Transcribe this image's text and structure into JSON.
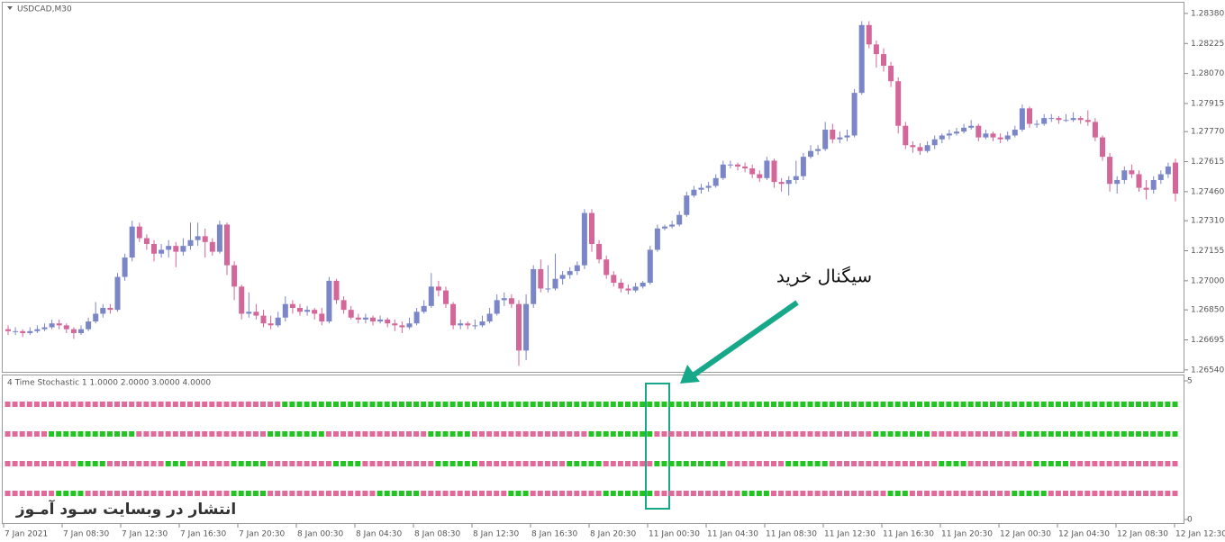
{
  "chart_data": [
    {
      "type": "candlestick",
      "title": "USDCAD,M30",
      "bull_color": "#7b86c8",
      "bear_color": "#d4679a",
      "ylim": [
        1.2653,
        1.2844
      ],
      "yticks": [
        {
          "value": 1.2838,
          "label": "1.28380"
        },
        {
          "value": 1.28225,
          "label": "1.28225"
        },
        {
          "value": 1.2807,
          "label": "1.28070"
        },
        {
          "value": 1.27915,
          "label": "1.27915"
        },
        {
          "value": 1.2777,
          "label": "1.27770"
        },
        {
          "value": 1.27615,
          "label": "1.27615"
        },
        {
          "value": 1.2746,
          "label": "1.27460"
        },
        {
          "value": 1.2731,
          "label": "1.27310"
        },
        {
          "value": 1.27155,
          "label": "1.27155"
        },
        {
          "value": 1.27,
          "label": "1.27000"
        },
        {
          "value": 1.2685,
          "label": "1.26850"
        },
        {
          "value": 1.26695,
          "label": "1.26695"
        },
        {
          "value": 1.2654,
          "label": "1.26540"
        }
      ],
      "annotation": "سیگنال خرید",
      "candles": [
        [
          1.2675,
          1.2677,
          1.2672,
          1.2674
        ],
        [
          1.2674,
          1.2676,
          1.2672,
          1.2674
        ],
        [
          1.2674,
          1.2675,
          1.2671,
          1.2673
        ],
        [
          1.2673,
          1.2676,
          1.2672,
          1.2674
        ],
        [
          1.2674,
          1.2677,
          1.2673,
          1.2675
        ],
        [
          1.2675,
          1.2678,
          1.2674,
          1.2676
        ],
        [
          1.2676,
          1.268,
          1.2675,
          1.2678
        ],
        [
          1.2678,
          1.268,
          1.2675,
          1.2677
        ],
        [
          1.2677,
          1.2678,
          1.2673,
          1.2675
        ],
        [
          1.2675,
          1.2676,
          1.267,
          1.2673
        ],
        [
          1.2673,
          1.2677,
          1.2672,
          1.2675
        ],
        [
          1.2675,
          1.2681,
          1.2674,
          1.2679
        ],
        [
          1.2679,
          1.2689,
          1.2678,
          1.2683
        ],
        [
          1.2683,
          1.2688,
          1.2681,
          1.2686
        ],
        [
          1.2686,
          1.2688,
          1.2683,
          1.2685
        ],
        [
          1.2685,
          1.2704,
          1.2684,
          1.2702
        ],
        [
          1.2702,
          1.2714,
          1.27,
          1.2712
        ],
        [
          1.2712,
          1.2731,
          1.271,
          1.2728
        ],
        [
          1.2728,
          1.273,
          1.272,
          1.2722
        ],
        [
          1.2722,
          1.2724,
          1.2716,
          1.2719
        ],
        [
          1.2719,
          1.2721,
          1.271,
          1.2714
        ],
        [
          1.2714,
          1.2719,
          1.2712,
          1.2716
        ],
        [
          1.2716,
          1.2721,
          1.2712,
          1.2718
        ],
        [
          1.2718,
          1.272,
          1.2707,
          1.2715
        ],
        [
          1.2715,
          1.2722,
          1.2713,
          1.2718
        ],
        [
          1.2718,
          1.273,
          1.2716,
          1.2721
        ],
        [
          1.2721,
          1.273,
          1.2718,
          1.2723
        ],
        [
          1.2723,
          1.2727,
          1.2712,
          1.272
        ],
        [
          1.272,
          1.2722,
          1.2713,
          1.2715
        ],
        [
          1.2715,
          1.2731,
          1.2714,
          1.2729
        ],
        [
          1.2729,
          1.273,
          1.2703,
          1.2708
        ],
        [
          1.2708,
          1.271,
          1.269,
          1.2697
        ],
        [
          1.2697,
          1.2698,
          1.268,
          1.2683
        ],
        [
          1.2683,
          1.2694,
          1.2681,
          1.2684
        ],
        [
          1.2684,
          1.2688,
          1.268,
          1.2682
        ],
        [
          1.2682,
          1.2685,
          1.2676,
          1.2678
        ],
        [
          1.2678,
          1.2682,
          1.2675,
          1.2677
        ],
        [
          1.2677,
          1.2684,
          1.2676,
          1.2681
        ],
        [
          1.2681,
          1.2692,
          1.2679,
          1.2688
        ],
        [
          1.2688,
          1.269,
          1.2683,
          1.2686
        ],
        [
          1.2686,
          1.2688,
          1.2682,
          1.2684
        ],
        [
          1.2684,
          1.2687,
          1.2682,
          1.2685
        ],
        [
          1.2685,
          1.2686,
          1.268,
          1.2683
        ],
        [
          1.2683,
          1.2686,
          1.2677,
          1.2679
        ],
        [
          1.2679,
          1.2702,
          1.2678,
          1.27
        ],
        [
          1.27,
          1.2701,
          1.2688,
          1.269
        ],
        [
          1.269,
          1.2692,
          1.2683,
          1.2685
        ],
        [
          1.2685,
          1.2687,
          1.268,
          1.2681
        ],
        [
          1.2681,
          1.2683,
          1.2678,
          1.268
        ],
        [
          1.268,
          1.2683,
          1.2678,
          1.2681
        ],
        [
          1.2681,
          1.2682,
          1.2677,
          1.2679
        ],
        [
          1.2679,
          1.2682,
          1.2678,
          1.268
        ],
        [
          1.268,
          1.2681,
          1.2676,
          1.2678
        ],
        [
          1.2678,
          1.268,
          1.2674,
          1.2677
        ],
        [
          1.2677,
          1.2679,
          1.2673,
          1.2676
        ],
        [
          1.2676,
          1.2681,
          1.2675,
          1.2678
        ],
        [
          1.2678,
          1.2686,
          1.2677,
          1.2684
        ],
        [
          1.2684,
          1.269,
          1.2683,
          1.2687
        ],
        [
          1.2687,
          1.2704,
          1.2686,
          1.2697
        ],
        [
          1.2697,
          1.27,
          1.2692,
          1.2695
        ],
        [
          1.2695,
          1.2697,
          1.2686,
          1.2688
        ],
        [
          1.2688,
          1.2689,
          1.2675,
          1.2677
        ],
        [
          1.2677,
          1.268,
          1.2675,
          1.2678
        ],
        [
          1.2678,
          1.2679,
          1.2675,
          1.2677
        ],
        [
          1.2677,
          1.268,
          1.2675,
          1.2677
        ],
        [
          1.2677,
          1.2682,
          1.2676,
          1.2679
        ],
        [
          1.2679,
          1.2686,
          1.2678,
          1.2683
        ],
        [
          1.2683,
          1.2693,
          1.2682,
          1.269
        ],
        [
          1.269,
          1.2694,
          1.2687,
          1.2691
        ],
        [
          1.2691,
          1.2693,
          1.2686,
          1.2688
        ],
        [
          1.2688,
          1.269,
          1.2656,
          1.2664
        ],
        [
          1.2664,
          1.2693,
          1.2659,
          1.2688
        ],
        [
          1.2688,
          1.2708,
          1.2686,
          1.2706
        ],
        [
          1.2706,
          1.2711,
          1.2694,
          1.2696
        ],
        [
          1.2696,
          1.2708,
          1.2694,
          1.2696
        ],
        [
          1.2696,
          1.2714,
          1.2695,
          1.2701
        ],
        [
          1.2701,
          1.2705,
          1.2698,
          1.2703
        ],
        [
          1.2703,
          1.2707,
          1.2701,
          1.2705
        ],
        [
          1.2705,
          1.271,
          1.2703,
          1.2708
        ],
        [
          1.2708,
          1.2737,
          1.2706,
          1.2735
        ],
        [
          1.2735,
          1.2737,
          1.2715,
          1.2719
        ],
        [
          1.2719,
          1.2721,
          1.2709,
          1.2711
        ],
        [
          1.2711,
          1.2713,
          1.2701,
          1.2703
        ],
        [
          1.2703,
          1.2705,
          1.2697,
          1.2699
        ],
        [
          1.2699,
          1.2701,
          1.2694,
          1.2696
        ],
        [
          1.2696,
          1.2698,
          1.2693,
          1.2695
        ],
        [
          1.2695,
          1.2699,
          1.2694,
          1.2697
        ],
        [
          1.2697,
          1.27,
          1.2696,
          1.2699
        ],
        [
          1.2699,
          1.2718,
          1.2698,
          1.2716
        ],
        [
          1.2716,
          1.2729,
          1.2715,
          1.2727
        ],
        [
          1.2727,
          1.2729,
          1.2726,
          1.2728
        ],
        [
          1.2728,
          1.2731,
          1.2727,
          1.2729
        ],
        [
          1.2729,
          1.2736,
          1.2728,
          1.2734
        ],
        [
          1.2734,
          1.2746,
          1.2733,
          1.2744
        ],
        [
          1.2744,
          1.2749,
          1.2743,
          1.2747
        ],
        [
          1.2747,
          1.275,
          1.2745,
          1.2748
        ],
        [
          1.2748,
          1.2751,
          1.2746,
          1.2749
        ],
        [
          1.2749,
          1.2755,
          1.2748,
          1.2753
        ],
        [
          1.2753,
          1.2762,
          1.2752,
          1.276
        ],
        [
          1.276,
          1.2762,
          1.2758,
          1.276
        ],
        [
          1.276,
          1.2761,
          1.2757,
          1.2759
        ],
        [
          1.2759,
          1.2761,
          1.2756,
          1.2758
        ],
        [
          1.2758,
          1.276,
          1.2753,
          1.2755
        ],
        [
          1.2755,
          1.2757,
          1.2751,
          1.2753
        ],
        [
          1.2753,
          1.2764,
          1.2752,
          1.2762
        ],
        [
          1.2762,
          1.2763,
          1.2748,
          1.2751
        ],
        [
          1.2751,
          1.2753,
          1.2746,
          1.275
        ],
        [
          1.275,
          1.2754,
          1.2744,
          1.2752
        ],
        [
          1.2752,
          1.2762,
          1.275,
          1.2754
        ],
        [
          1.2754,
          1.2766,
          1.2752,
          1.2764
        ],
        [
          1.2764,
          1.277,
          1.2763,
          1.2767
        ],
        [
          1.2767,
          1.277,
          1.2765,
          1.2768
        ],
        [
          1.2768,
          1.2782,
          1.2767,
          1.2778
        ],
        [
          1.2778,
          1.2781,
          1.2771,
          1.2773
        ],
        [
          1.2773,
          1.2777,
          1.2771,
          1.2774
        ],
        [
          1.2774,
          1.2778,
          1.2772,
          1.2775
        ],
        [
          1.2775,
          1.2799,
          1.2774,
          1.2797
        ],
        [
          1.2797,
          1.2834,
          1.2796,
          1.2832
        ],
        [
          1.2832,
          1.2834,
          1.282,
          1.2822
        ],
        [
          1.2822,
          1.2824,
          1.281,
          1.2817
        ],
        [
          1.2817,
          1.282,
          1.2808,
          1.2811
        ],
        [
          1.2811,
          1.2813,
          1.28,
          1.2803
        ],
        [
          1.2803,
          1.2805,
          1.2776,
          1.278
        ],
        [
          1.278,
          1.2782,
          1.2768,
          1.277
        ],
        [
          1.277,
          1.2772,
          1.2766,
          1.2769
        ],
        [
          1.2769,
          1.2771,
          1.2765,
          1.2767
        ],
        [
          1.2767,
          1.2772,
          1.2766,
          1.277
        ],
        [
          1.277,
          1.2775,
          1.2768,
          1.2773
        ],
        [
          1.2773,
          1.2776,
          1.2771,
          1.2775
        ],
        [
          1.2775,
          1.2778,
          1.2773,
          1.2776
        ],
        [
          1.2776,
          1.2779,
          1.2775,
          1.2777
        ],
        [
          1.2777,
          1.2781,
          1.2776,
          1.2779
        ],
        [
          1.2779,
          1.2783,
          1.2778,
          1.278
        ],
        [
          1.278,
          1.2781,
          1.2772,
          1.2774
        ],
        [
          1.2774,
          1.2778,
          1.2773,
          1.2776
        ],
        [
          1.2776,
          1.2777,
          1.2772,
          1.2774
        ],
        [
          1.2774,
          1.2776,
          1.2771,
          1.2773
        ],
        [
          1.2773,
          1.2777,
          1.2772,
          1.2775
        ],
        [
          1.2775,
          1.278,
          1.2774,
          1.2778
        ],
        [
          1.2778,
          1.2791,
          1.2777,
          1.2789
        ],
        [
          1.2789,
          1.279,
          1.2779,
          1.2781
        ],
        [
          1.2781,
          1.2783,
          1.2779,
          1.2781
        ],
        [
          1.2781,
          1.2786,
          1.278,
          1.2784
        ],
        [
          1.2784,
          1.2786,
          1.2782,
          1.2784
        ],
        [
          1.2784,
          1.2785,
          1.2781,
          1.2783
        ],
        [
          1.2783,
          1.2786,
          1.2782,
          1.2783
        ],
        [
          1.2783,
          1.2787,
          1.2782,
          1.2784
        ],
        [
          1.2784,
          1.2785,
          1.2781,
          1.2783
        ],
        [
          1.2783,
          1.2788,
          1.278,
          1.2782
        ],
        [
          1.2782,
          1.2784,
          1.2772,
          1.2774
        ],
        [
          1.2774,
          1.2775,
          1.2762,
          1.2764
        ],
        [
          1.2764,
          1.2766,
          1.2746,
          1.275
        ],
        [
          1.275,
          1.2754,
          1.2745,
          1.2752
        ],
        [
          1.2752,
          1.2759,
          1.275,
          1.2757
        ],
        [
          1.2757,
          1.276,
          1.2753,
          1.2755
        ],
        [
          1.2755,
          1.2757,
          1.2746,
          1.2748
        ],
        [
          1.2748,
          1.2752,
          1.2742,
          1.2747
        ],
        [
          1.2747,
          1.2754,
          1.2745,
          1.2752
        ],
        [
          1.2752,
          1.2757,
          1.275,
          1.2755
        ],
        [
          1.2755,
          1.2761,
          1.2753,
          1.2759
        ],
        [
          1.2761,
          1.2763,
          1.2741,
          1.2745
        ]
      ]
    },
    {
      "type": "signal-dots",
      "title": "4 Time Stochastic 1 1.0000 2.0000 3.0000 4.0000",
      "ylim": [
        0,
        5
      ],
      "yticks": [
        5,
        0
      ],
      "buy_color": "#22c322",
      "sell_color": "#e06a9a",
      "rows": [
        {
          "level": 4,
          "start": "sell",
          "runs": [
            38,
            123
          ]
        },
        {
          "level": 3,
          "start": "sell",
          "runs": [
            6,
            12,
            18,
            8,
            14,
            6,
            16,
            9,
            30,
            8,
            12,
            22
          ]
        },
        {
          "level": 2,
          "start": "sell",
          "runs": [
            10,
            4,
            8,
            3,
            6,
            5,
            9,
            4,
            10,
            6,
            12,
            5,
            7,
            10,
            8,
            6,
            15,
            4,
            9,
            5,
            15
          ]
        },
        {
          "level": 1,
          "start": "sell",
          "runs": [
            7,
            4,
            20,
            5,
            15,
            6,
            12,
            3,
            10,
            7,
            12,
            4,
            16,
            3,
            14,
            5,
            18
          ]
        }
      ],
      "watermark": "انتشار در وبسایت سـود آمـوز",
      "time_labels": [
        "7 Jan 2021",
        "7 Jan 08:30",
        "7 Jan 12:30",
        "7 Jan 16:30",
        "7 Jan 20:30",
        "8 Jan 00:30",
        "8 Jan 04:30",
        "8 Jan 08:30",
        "8 Jan 12:30",
        "8 Jan 16:30",
        "8 Jan 20:30",
        "11 Jan 00:30",
        "11 Jan 04:30",
        "11 Jan 08:30",
        "11 Jan 12:30",
        "11 Jan 16:30",
        "11 Jan 20:30",
        "12 Jan 00:30",
        "12 Jan 04:30",
        "12 Jan 08:30",
        "12 Jan 12:30"
      ]
    }
  ]
}
